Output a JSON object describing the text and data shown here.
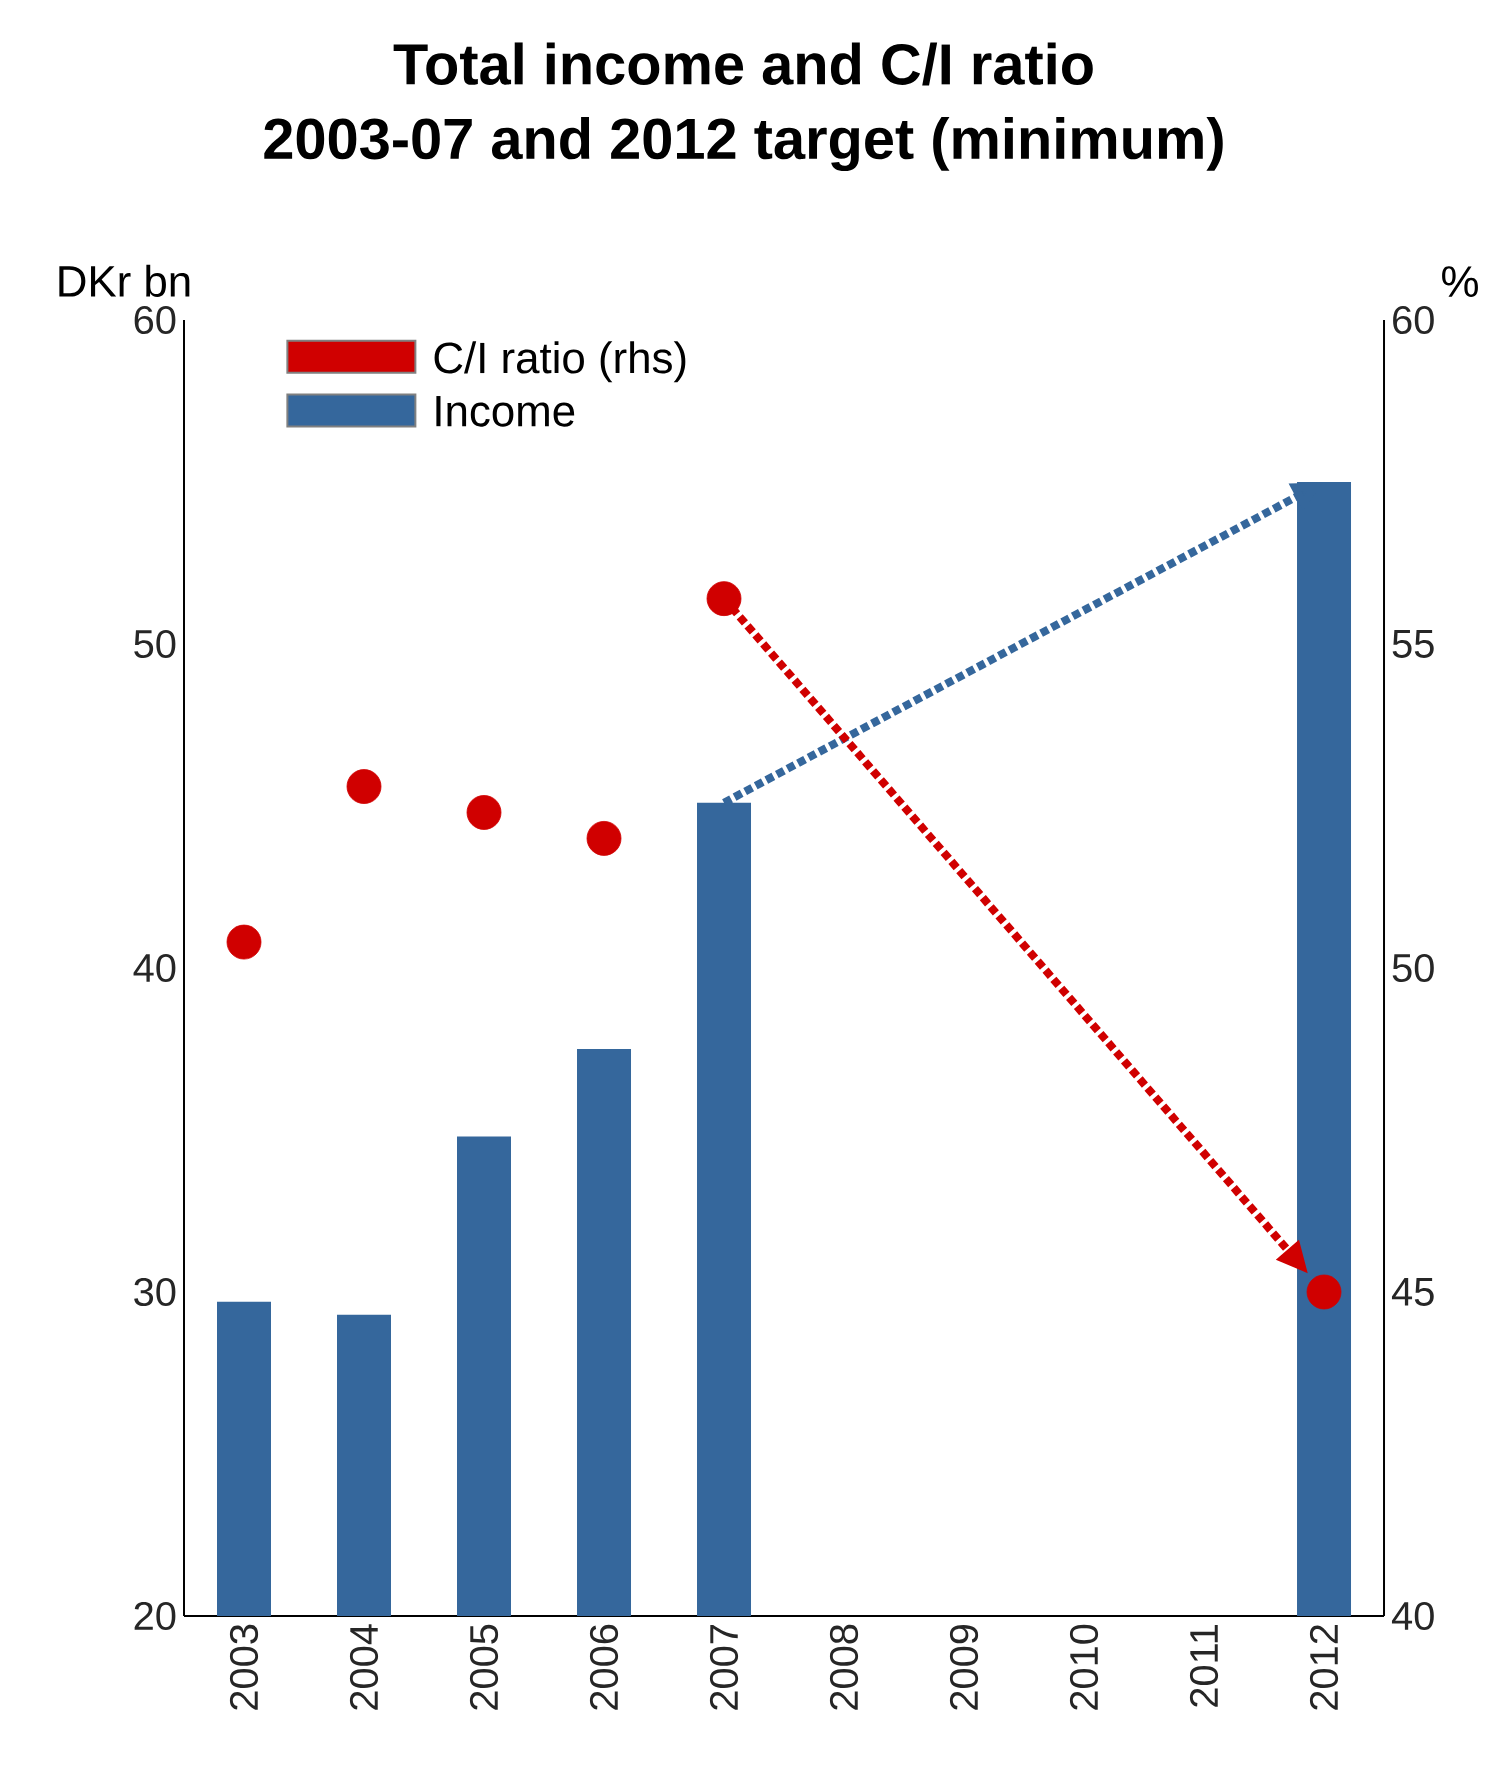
{
  "chart_data": {
    "type": "bar",
    "title": "Total income and C/I ratio",
    "subtitle": "2003-07 and 2012 target (minimum)",
    "ylabel": "DKr bn",
    "y2label": "%",
    "categories": [
      "2003",
      "2004",
      "2005",
      "2006",
      "2007",
      "2008",
      "2009",
      "2010",
      "2011",
      "2012"
    ],
    "series": [
      {
        "name": "C/I ratio (rhs)",
        "type": "scatter",
        "axis": "y2",
        "color": "#d00000",
        "values": [
          50.4,
          52.8,
          52.4,
          52.0,
          55.7,
          null,
          null,
          null,
          null,
          45.0
        ]
      },
      {
        "name": "Income",
        "color": "#35679c",
        "values": [
          29.7,
          29.3,
          34.8,
          37.5,
          45.1,
          null,
          null,
          null,
          null,
          55.0
        ]
      }
    ],
    "ylim": [
      20,
      60
    ],
    "yticks": [
      20,
      30,
      40,
      50,
      60
    ],
    "y2lim": [
      40,
      60
    ],
    "y2ticks": [
      40,
      45,
      50,
      55,
      60
    ],
    "legend": "top left",
    "marker": "circle"
  }
}
